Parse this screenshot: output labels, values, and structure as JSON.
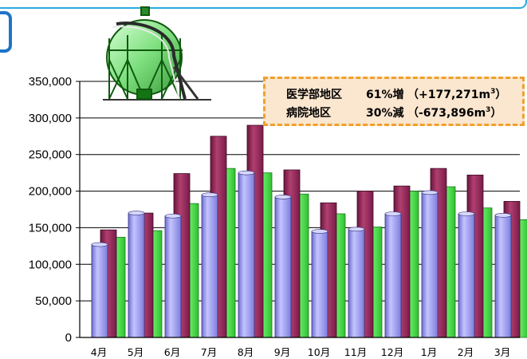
{
  "colors": {
    "series1": "#9c9cf2",
    "series2": "#97285e",
    "series3": "#3fd63f",
    "header_border": "#29abe2",
    "badge_border": "#1f74c8",
    "callout_bg": "#fbe6cf",
    "callout_border": "#f0a02c"
  },
  "annotation": {
    "line1": {
      "area": "医学部地区",
      "change": "61%増",
      "detail": "（+177,271m",
      "unit_sup": "3",
      "close": "）"
    },
    "line2": {
      "area": "病院地区",
      "change": "30%減",
      "detail": "（-673,896m",
      "unit_sup": "3",
      "close": "）"
    }
  },
  "icon": "gas-holder-tank-icon",
  "chart_data": {
    "type": "bar",
    "categories": [
      "4月",
      "5月",
      "6月",
      "7月",
      "8月",
      "9月",
      "10月",
      "11月",
      "12月",
      "1月",
      "2月",
      "3月"
    ],
    "ylim": [
      0,
      350000
    ],
    "yticks": [
      "0",
      "50,000",
      "100,000",
      "150,000",
      "200,000",
      "250,000",
      "300,000",
      "350,000"
    ],
    "grid": true,
    "legend": "none",
    "series": [
      {
        "values": [
          127000,
          170000,
          166000,
          195000,
          225000,
          192000,
          145000,
          148000,
          169000,
          198000,
          169000,
          167000
        ]
      },
      {
        "values": [
          147000,
          170000,
          224000,
          275000,
          290000,
          229000,
          184000,
          200000,
          207000,
          231000,
          222000,
          186000
        ]
      },
      {
        "values": [
          137000,
          146000,
          183000,
          231000,
          225000,
          196000,
          169000,
          151000,
          200000,
          206000,
          177000,
          161000
        ]
      }
    ]
  }
}
